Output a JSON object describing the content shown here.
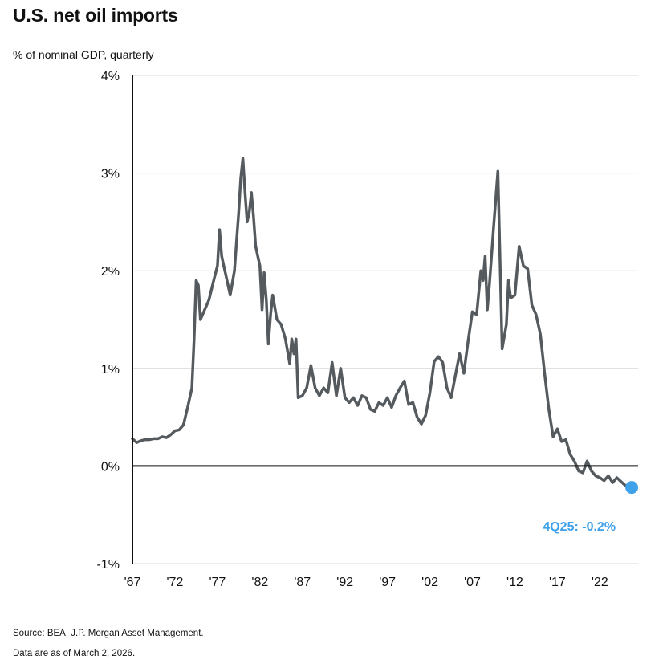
{
  "chart_data": {
    "type": "line",
    "title": "U.S. net oil imports",
    "subtitle": "% of nominal GDP, quarterly",
    "xlabel": "",
    "ylabel": "% of nominal GDP",
    "x_ticks": [
      "'67",
      "'72",
      "'77",
      "'82",
      "'87",
      "'92",
      "'97",
      "'02",
      "'07",
      "'12",
      "'17",
      "'22"
    ],
    "x_tick_years": [
      1967,
      1972,
      1977,
      1982,
      1987,
      1992,
      1997,
      2002,
      2007,
      2012,
      2017,
      2022
    ],
    "xlim": [
      1967,
      2026.5
    ],
    "y_ticks": [
      "4%",
      "3%",
      "2%",
      "1%",
      "0%",
      "-1%"
    ],
    "y_tick_values": [
      4,
      3,
      2,
      1,
      0,
      -1
    ],
    "ylim": [
      -1,
      4
    ],
    "grid": true,
    "series": [
      {
        "name": "U.S. net oil imports",
        "color": "#555a5e",
        "x": [
          1967.0,
          1967.5,
          1968.0,
          1968.5,
          1969.0,
          1969.5,
          1970.0,
          1970.5,
          1971.0,
          1971.5,
          1972.0,
          1972.5,
          1973.0,
          1973.5,
          1974.0,
          1974.25,
          1974.5,
          1974.75,
          1975.0,
          1975.5,
          1976.0,
          1976.5,
          1977.0,
          1977.25,
          1977.5,
          1977.75,
          1978.0,
          1978.5,
          1979.0,
          1979.25,
          1979.5,
          1979.75,
          1980.0,
          1980.25,
          1980.5,
          1980.75,
          1981.0,
          1981.25,
          1981.5,
          1982.0,
          1982.25,
          1982.5,
          1982.75,
          1983.0,
          1983.25,
          1983.5,
          1984.0,
          1984.5,
          1985.0,
          1985.5,
          1985.75,
          1986.0,
          1986.25,
          1986.5,
          1987.0,
          1987.5,
          1988.0,
          1988.5,
          1989.0,
          1989.5,
          1990.0,
          1990.5,
          1991.0,
          1991.5,
          1992.0,
          1992.5,
          1993.0,
          1993.5,
          1994.0,
          1994.5,
          1995.0,
          1995.5,
          1996.0,
          1996.5,
          1997.0,
          1997.5,
          1998.0,
          1998.5,
          1999.0,
          1999.5,
          2000.0,
          2000.5,
          2001.0,
          2001.5,
          2002.0,
          2002.5,
          2003.0,
          2003.5,
          2004.0,
          2004.5,
          2005.0,
          2005.5,
          2006.0,
          2006.5,
          2007.0,
          2007.5,
          2008.0,
          2008.25,
          2008.5,
          2008.75,
          2009.0,
          2009.5,
          2010.0,
          2010.5,
          2011.0,
          2011.25,
          2011.5,
          2012.0,
          2012.5,
          2013.0,
          2013.5,
          2014.0,
          2014.5,
          2015.0,
          2015.5,
          2016.0,
          2016.5,
          2017.0,
          2017.5,
          2018.0,
          2018.5,
          2019.0,
          2019.5,
          2020.0,
          2020.5,
          2021.0,
          2021.5,
          2022.0,
          2022.5,
          2023.0,
          2023.5,
          2024.0,
          2024.5,
          2025.0,
          2025.75
        ],
        "values": [
          0.28,
          0.24,
          0.26,
          0.27,
          0.27,
          0.28,
          0.28,
          0.3,
          0.29,
          0.32,
          0.36,
          0.37,
          0.42,
          0.6,
          0.8,
          1.3,
          1.9,
          1.85,
          1.5,
          1.6,
          1.7,
          1.88,
          2.05,
          2.42,
          2.15,
          2.05,
          1.95,
          1.75,
          2.0,
          2.3,
          2.6,
          2.95,
          3.15,
          2.8,
          2.5,
          2.6,
          2.8,
          2.55,
          2.25,
          2.05,
          1.6,
          1.98,
          1.7,
          1.25,
          1.55,
          1.75,
          1.5,
          1.45,
          1.3,
          1.05,
          1.3,
          1.15,
          1.3,
          0.7,
          0.72,
          0.8,
          1.03,
          0.8,
          0.72,
          0.8,
          0.75,
          1.06,
          0.72,
          1.0,
          0.7,
          0.65,
          0.7,
          0.62,
          0.72,
          0.7,
          0.58,
          0.56,
          0.65,
          0.62,
          0.7,
          0.6,
          0.72,
          0.8,
          0.87,
          0.63,
          0.65,
          0.5,
          0.43,
          0.52,
          0.75,
          1.07,
          1.12,
          1.06,
          0.8,
          0.7,
          0.93,
          1.15,
          0.95,
          1.28,
          1.58,
          1.55,
          2.0,
          1.9,
          2.15,
          1.6,
          1.85,
          2.45,
          3.02,
          1.2,
          1.45,
          1.9,
          1.72,
          1.75,
          2.25,
          2.05,
          2.02,
          1.65,
          1.55,
          1.35,
          0.95,
          0.58,
          0.3,
          0.38,
          0.25,
          0.27,
          0.12,
          0.05,
          -0.05,
          -0.07,
          0.05,
          -0.05,
          -0.1,
          -0.12,
          -0.15,
          -0.1,
          -0.17,
          -0.12,
          -0.16,
          -0.2,
          -0.22
        ]
      }
    ],
    "annotation": {
      "text": "4Q25: -0.2%",
      "x": 2025.75,
      "y": -0.22,
      "color": "#3ea1ea"
    },
    "source": "Source: BEA, J.P. Morgan Asset Management.",
    "note": "Data are as of March 2, 2026."
  }
}
